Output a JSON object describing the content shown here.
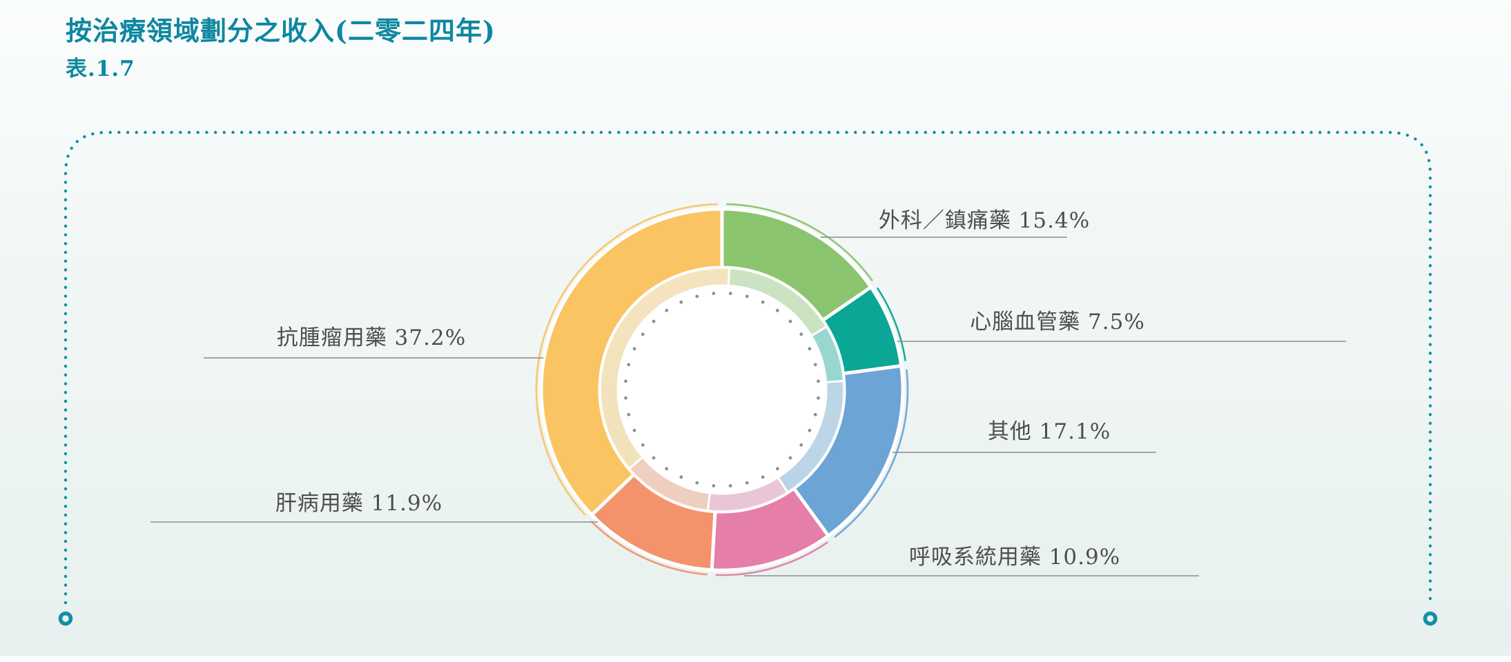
{
  "header": {
    "title": "按治療領域劃分之收入(二零二四年)",
    "table_ref": "表.1.7"
  },
  "chart_data": {
    "type": "pie",
    "subtype": "donut",
    "title": "按治療領域劃分之收入(二零二四年)",
    "table_ref": "表.1.7",
    "unit": "%",
    "start_angle_deg": 0,
    "direction": "clockwise",
    "label_format": "{label} {value}%",
    "segments": [
      {
        "label": "外科／鎮痛藥",
        "value": 15.4,
        "color": "#8BC46E"
      },
      {
        "label": "心腦血管藥",
        "value": 7.5,
        "color": "#0AA696"
      },
      {
        "label": "其他",
        "value": 17.1,
        "color": "#6CA4D6"
      },
      {
        "label": "呼吸系統用藥",
        "value": 10.9,
        "color": "#E57EA8"
      },
      {
        "label": "肝病用藥",
        "value": 11.9,
        "color": "#F4926C"
      },
      {
        "label": "抗腫瘤用藥",
        "value": 37.2,
        "color": "#FAC463"
      }
    ]
  },
  "style": {
    "accent_teal": "#1190A6",
    "title_color": "#0E87A0",
    "label_text_color": "#4E4E4E",
    "leader_line_color": "#8C8C8C",
    "inner_dot_color": "#909090"
  }
}
